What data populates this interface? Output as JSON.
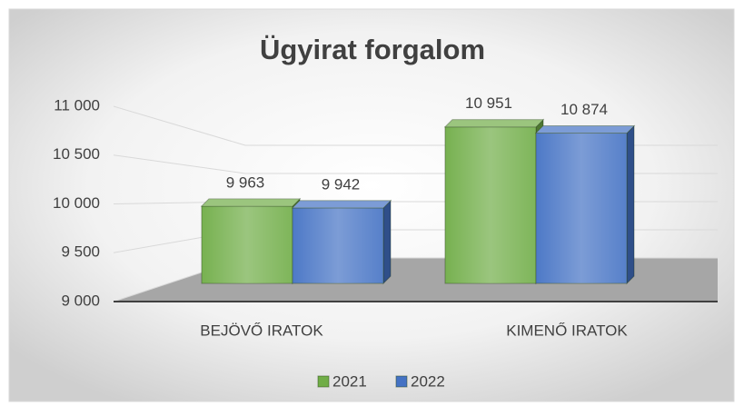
{
  "chart_data": {
    "type": "bar3d",
    "title": "Ügyirat forgalom",
    "categories": [
      "BEJÖVŐ IRATOK",
      "KIMENŐ IRATOK"
    ],
    "series": [
      {
        "name": "2021",
        "color": "#70ad47",
        "values": [
          9963,
          10951
        ],
        "value_labels": [
          "9 963",
          "10 951"
        ]
      },
      {
        "name": "2022",
        "color": "#4472c4",
        "values": [
          9942,
          10874
        ],
        "value_labels": [
          "9 942",
          "10 874"
        ]
      }
    ],
    "ylim": [
      9000,
      11000
    ],
    "yticks": [
      {
        "value": 9000,
        "label": "9 000"
      },
      {
        "value": 9500,
        "label": "9 500"
      },
      {
        "value": 10000,
        "label": "10 000"
      },
      {
        "value": 10500,
        "label": "10 500"
      },
      {
        "value": 11000,
        "label": "11 000"
      }
    ],
    "grid": true,
    "legend": "bottom"
  }
}
